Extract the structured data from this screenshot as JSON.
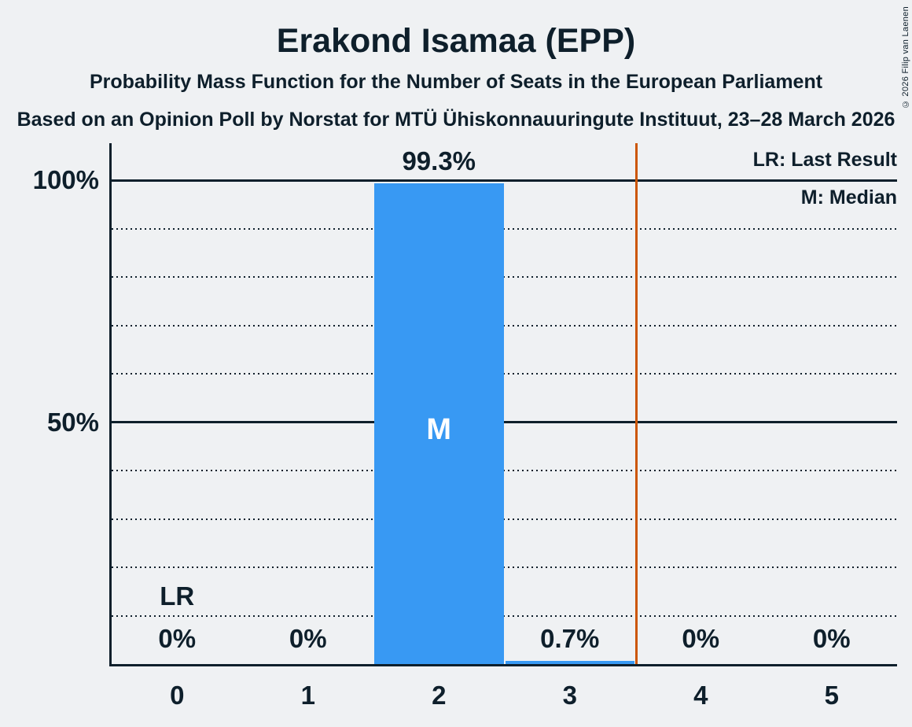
{
  "title": "Erakond Isamaa (EPP)",
  "subtitle": "Probability Mass Function for the Number of Seats in the European Parliament",
  "source_line": "Based on an Opinion Poll by Norstat for MTÜ Ühiskonnauuringute Instituut, 23–28 March 2026",
  "copyright": "© 2026 Filip van Laenen",
  "legend": {
    "lr": "LR: Last Result",
    "m": "M: Median"
  },
  "colors": {
    "background": "#eff1f3",
    "ink": "#0e1f2b",
    "bar": "#3899f3",
    "vline": "#cc5604",
    "median_text": "#ffffff"
  },
  "chart_data": {
    "type": "bar",
    "title": "Erakond Isamaa (EPP)",
    "categories": [
      "0",
      "1",
      "2",
      "3",
      "4",
      "5"
    ],
    "values": [
      0,
      0,
      99.3,
      0.7,
      0,
      0
    ],
    "value_labels": [
      "0%",
      "0%",
      "99.3%",
      "0.7%",
      "0%",
      "0%"
    ],
    "y_ticks": [
      {
        "label": "100%",
        "value": 100
      },
      {
        "label": "50%",
        "value": 50
      }
    ],
    "ylim": [
      0,
      108
    ],
    "y_gridlines_dotted": [
      10,
      20,
      30,
      40,
      60,
      70,
      80,
      90
    ],
    "y_gridlines_solid": [
      50,
      100
    ],
    "vline_x": 3.5,
    "annotations": [
      {
        "text": "LR",
        "column": 0
      },
      {
        "text": "M",
        "column": 2
      }
    ],
    "legend_position": "top-right",
    "grid": "horizontal-dotted"
  }
}
